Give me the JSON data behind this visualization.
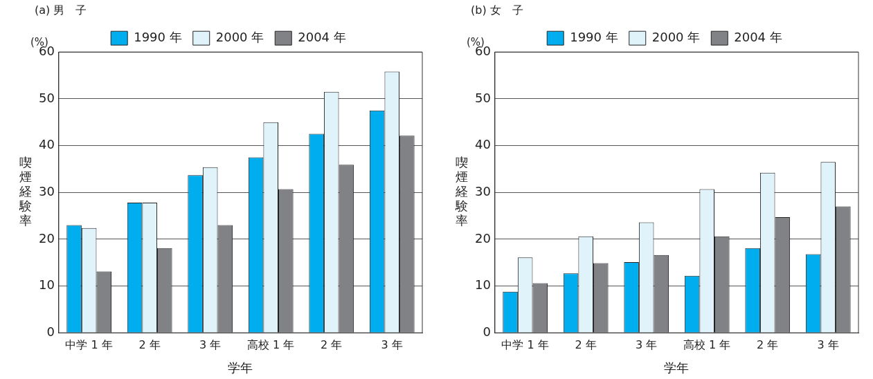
{
  "chart_data": [
    {
      "type": "bar",
      "title": "(a) 男　子",
      "xlabel": "学年",
      "ylabel": "喫煙経験率",
      "annotations": [
        "(%)"
      ],
      "categories": [
        "中学 1 年",
        "2 年",
        "3 年",
        "高校 1 年",
        "2 年",
        "3 年"
      ],
      "series": [
        {
          "name": "1990 年",
          "color": "#00aeef",
          "values": [
            23,
            27.8,
            33.7,
            37.5,
            42.5,
            47.5
          ]
        },
        {
          "name": "2000 年",
          "color": "#e0f3fb",
          "values": [
            22.4,
            27.8,
            35.4,
            45,
            51.5,
            55.8
          ]
        },
        {
          "name": "2004 年",
          "color": "#808285",
          "values": [
            13.1,
            18.1,
            23,
            30.7,
            35.9,
            42.1
          ]
        }
      ],
      "ylim": [
        0,
        60
      ],
      "yticks": [
        0,
        10,
        20,
        30,
        40,
        50,
        60
      ],
      "grid": "y",
      "legend": "top"
    },
    {
      "type": "bar",
      "title": "(b) 女　子",
      "xlabel": "学年",
      "ylabel": "喫煙経験率",
      "annotations": [
        "(%)"
      ],
      "categories": [
        "中学 1 年",
        "2 年",
        "3 年",
        "高校 1 年",
        "2 年",
        "3 年"
      ],
      "series": [
        {
          "name": "1990 年",
          "color": "#00aeef",
          "values": [
            8.8,
            12.7,
            15.1,
            12.2,
            18.1,
            16.8
          ]
        },
        {
          "name": "2000 年",
          "color": "#e0f3fb",
          "values": [
            16.1,
            20.6,
            23.6,
            30.7,
            34.2,
            36.5
          ]
        },
        {
          "name": "2004 年",
          "color": "#808285",
          "values": [
            10.6,
            14.9,
            16.6,
            20.6,
            24.7,
            27
          ]
        }
      ],
      "ylim": [
        0,
        60
      ],
      "yticks": [
        0,
        10,
        20,
        30,
        40,
        50,
        60
      ],
      "grid": "y",
      "legend": "top"
    }
  ]
}
